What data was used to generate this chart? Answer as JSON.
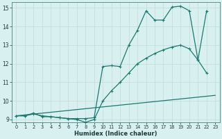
{
  "line1_x": [
    0,
    1,
    2,
    3,
    4,
    5,
    6,
    7,
    8,
    9,
    10,
    11,
    12,
    13,
    14,
    15,
    16,
    17,
    18,
    19,
    20,
    21,
    22
  ],
  "line1_y": [
    9.2,
    9.2,
    9.35,
    9.15,
    9.15,
    9.1,
    9.05,
    9.05,
    9.05,
    9.1,
    11.85,
    11.9,
    11.85,
    13.0,
    13.8,
    14.85,
    14.35,
    14.35,
    15.05,
    15.1,
    14.85,
    12.2,
    14.85
  ],
  "line2_x": [
    0,
    1,
    2,
    3,
    4,
    5,
    6,
    7,
    8,
    9,
    10,
    11,
    12,
    13,
    14,
    15,
    16,
    17,
    18,
    19,
    20,
    21,
    22
  ],
  "line2_y": [
    9.2,
    9.2,
    9.3,
    9.2,
    9.15,
    9.1,
    9.05,
    9.0,
    8.85,
    9.0,
    10.0,
    10.55,
    11.0,
    11.5,
    12.0,
    12.3,
    12.55,
    12.75,
    12.9,
    13.0,
    12.8,
    12.2,
    11.5
  ],
  "line3_x": [
    0,
    23
  ],
  "line3_y": [
    9.2,
    10.3
  ],
  "color": "#1a7a6e",
  "bg_color": "#d8f0f0",
  "grid_color": "#c0dada",
  "xlabel": "Humidex (Indice chaleur)",
  "xlim": [
    0,
    23
  ],
  "ylim": [
    9,
    15
  ],
  "yticks": [
    9,
    10,
    11,
    12,
    13,
    14,
    15
  ],
  "xticks": [
    0,
    1,
    2,
    3,
    4,
    5,
    6,
    7,
    8,
    9,
    10,
    11,
    12,
    13,
    14,
    15,
    16,
    17,
    18,
    19,
    20,
    21,
    22,
    23
  ]
}
